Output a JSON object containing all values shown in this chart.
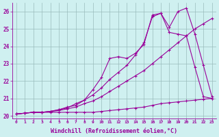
{
  "xlabel": "Windchill (Refroidissement éolien,°C)",
  "bg_color": "#cff0f0",
  "line_color": "#990099",
  "grid_color": "#99bbbb",
  "xlim": [
    -0.5,
    23.5
  ],
  "ylim": [
    19.85,
    26.5
  ],
  "xticks": [
    0,
    1,
    2,
    3,
    4,
    5,
    6,
    7,
    8,
    9,
    10,
    11,
    12,
    13,
    14,
    15,
    16,
    17,
    18,
    19,
    20,
    21,
    22,
    23
  ],
  "yticks": [
    20,
    21,
    22,
    23,
    24,
    25,
    26
  ],
  "series1_x": [
    0,
    1,
    2,
    3,
    4,
    5,
    6,
    7,
    8,
    9,
    10,
    11,
    12,
    13,
    14,
    15,
    16,
    17,
    18,
    19,
    20,
    21,
    22,
    23
  ],
  "series1_y": [
    20.1,
    20.15,
    20.2,
    20.2,
    20.2,
    20.2,
    20.2,
    20.2,
    20.2,
    20.2,
    20.25,
    20.3,
    20.35,
    20.4,
    20.45,
    20.5,
    20.6,
    20.7,
    20.75,
    20.8,
    20.85,
    20.9,
    20.95,
    21.0
  ],
  "series2_x": [
    0,
    1,
    2,
    3,
    4,
    5,
    6,
    7,
    8,
    9,
    10,
    11,
    12,
    13,
    14,
    15,
    16,
    17,
    18,
    19,
    20,
    21,
    22,
    23
  ],
  "series2_y": [
    20.1,
    20.15,
    20.2,
    20.2,
    20.25,
    20.3,
    20.4,
    20.5,
    20.7,
    20.85,
    21.1,
    21.4,
    21.7,
    22.0,
    22.3,
    22.6,
    23.0,
    23.4,
    23.8,
    24.2,
    24.6,
    25.0,
    25.3,
    25.6
  ],
  "series3_x": [
    0,
    1,
    2,
    3,
    4,
    5,
    6,
    7,
    8,
    9,
    10,
    11,
    12,
    13,
    14,
    15,
    16,
    17,
    18,
    19,
    20,
    21,
    22,
    23
  ],
  "series3_y": [
    20.1,
    20.15,
    20.2,
    20.2,
    20.25,
    20.35,
    20.45,
    20.7,
    20.9,
    21.5,
    22.2,
    23.3,
    23.4,
    23.3,
    23.6,
    24.1,
    25.8,
    25.9,
    24.8,
    24.7,
    24.6,
    22.8,
    21.1,
    21.0
  ],
  "series4_x": [
    0,
    1,
    2,
    3,
    4,
    5,
    6,
    7,
    8,
    9,
    10,
    11,
    12,
    13,
    14,
    15,
    16,
    17,
    18,
    19,
    20,
    21,
    22,
    23
  ],
  "series4_y": [
    20.1,
    20.15,
    20.2,
    20.2,
    20.25,
    20.35,
    20.5,
    20.6,
    20.9,
    21.2,
    21.6,
    22.1,
    22.5,
    22.9,
    23.5,
    24.2,
    25.7,
    25.9,
    25.1,
    26.0,
    26.2,
    24.7,
    22.9,
    21.1
  ]
}
